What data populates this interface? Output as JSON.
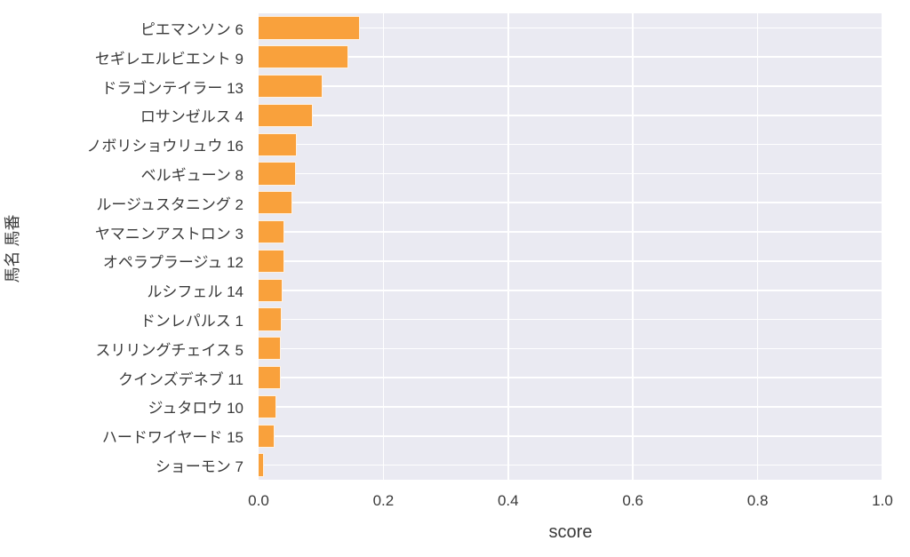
{
  "chart_data": {
    "type": "bar",
    "orientation": "horizontal",
    "title": "",
    "xlabel": "score",
    "ylabel": "馬名 馬番",
    "xlim": [
      0.0,
      1.0
    ],
    "xticks": [
      0.0,
      0.2,
      0.4,
      0.6,
      0.8,
      1.0
    ],
    "xtick_labels": [
      "0.0",
      "0.2",
      "0.4",
      "0.6",
      "0.8",
      "1.0"
    ],
    "grid": true,
    "legend": false,
    "categories": [
      "ピエマンソン 6",
      "セギレエルビエント 9",
      "ドラゴンテイラー 13",
      "ロサンゼルス 4",
      "ノボリショウリュウ 16",
      "ベルギューン 8",
      "ルージュスタニング 2",
      "ヤマニンアストロン 3",
      "オペラプラージュ 12",
      "ルシフェル 14",
      "ドンレパルス 1",
      "スリリングチェイス 5",
      "クインズデネブ 11",
      "ジュタロウ 10",
      "ハードワイヤード 15",
      "ショーモン 7"
    ],
    "values": [
      0.162,
      0.144,
      0.103,
      0.087,
      0.061,
      0.06,
      0.054,
      0.042,
      0.042,
      0.038,
      0.037,
      0.036,
      0.036,
      0.029,
      0.026,
      0.009
    ],
    "colors": {
      "bar": "#f9a13c",
      "bar_edge": "rgba(255,255,255,0.85)",
      "plot_background": "#eaeaf2",
      "gridline": "#ffffff",
      "figure_background": "#ffffff",
      "text": "#3a3a3a"
    }
  }
}
